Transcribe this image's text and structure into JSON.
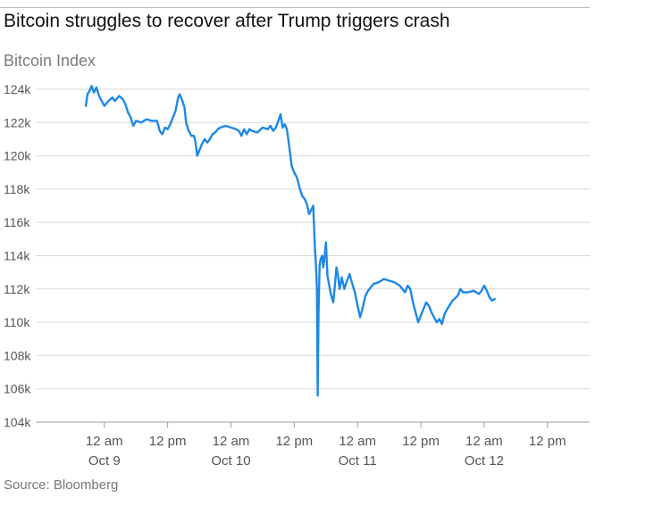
{
  "title": "Bitcoin struggles to recover after Trump triggers crash",
  "subtitle": "Bitcoin Index",
  "source": "Source: Bloomberg",
  "colors": {
    "line": "#1e88e5",
    "grid": "#d8d8d8",
    "text": "#555555"
  },
  "chart_data": {
    "type": "line",
    "title": "Bitcoin struggles to recover after Trump triggers crash",
    "ylabel": "Bitcoin Index",
    "xlabel": "",
    "ylim": [
      104000,
      124000
    ],
    "xlim": [
      -13,
      92
    ],
    "x_unit": "hours since 12 am Oct 9",
    "y_ticks": [
      104000,
      106000,
      108000,
      110000,
      112000,
      114000,
      116000,
      118000,
      120000,
      122000,
      124000
    ],
    "y_tick_labels": [
      "104k",
      "106k",
      "108k",
      "110k",
      "112k",
      "114k",
      "116k",
      "118k",
      "120k",
      "122k",
      "124k"
    ],
    "x_ticks": [
      {
        "x": 0,
        "line1": "12 am",
        "line2": "Oct 9"
      },
      {
        "x": 12,
        "line1": "12 pm",
        "line2": ""
      },
      {
        "x": 24,
        "line1": "12 am",
        "line2": "Oct 10"
      },
      {
        "x": 36,
        "line1": "12 pm",
        "line2": ""
      },
      {
        "x": 48,
        "line1": "12 am",
        "line2": "Oct 11"
      },
      {
        "x": 60,
        "line1": "12 pm",
        "line2": ""
      },
      {
        "x": 72,
        "line1": "12 am",
        "line2": "Oct 12"
      },
      {
        "x": 84,
        "line1": "12 pm",
        "line2": ""
      }
    ],
    "series": [
      {
        "name": "Bitcoin Index",
        "points": [
          [
            -3.5,
            123000
          ],
          [
            -3.2,
            123700
          ],
          [
            -2.8,
            123900
          ],
          [
            -2.4,
            124200
          ],
          [
            -2.0,
            123800
          ],
          [
            -1.5,
            124100
          ],
          [
            -1.0,
            123600
          ],
          [
            -0.5,
            123300
          ],
          [
            0.0,
            123000
          ],
          [
            0.8,
            123300
          ],
          [
            1.5,
            123500
          ],
          [
            2.0,
            123300
          ],
          [
            2.8,
            123600
          ],
          [
            3.5,
            123400
          ],
          [
            4.0,
            123100
          ],
          [
            4.5,
            122600
          ],
          [
            5.0,
            122300
          ],
          [
            5.5,
            121800
          ],
          [
            6.0,
            122100
          ],
          [
            7.0,
            122000
          ],
          [
            8.0,
            122200
          ],
          [
            9.0,
            122100
          ],
          [
            10.0,
            122100
          ],
          [
            10.5,
            121500
          ],
          [
            11.0,
            121300
          ],
          [
            11.5,
            121700
          ],
          [
            12.0,
            121600
          ],
          [
            12.5,
            121900
          ],
          [
            13.0,
            122300
          ],
          [
            13.5,
            122700
          ],
          [
            14.0,
            123500
          ],
          [
            14.3,
            123700
          ],
          [
            14.8,
            123300
          ],
          [
            15.2,
            122900
          ],
          [
            15.5,
            122000
          ],
          [
            16.0,
            121500
          ],
          [
            16.5,
            121200
          ],
          [
            17.0,
            121200
          ],
          [
            17.3,
            120800
          ],
          [
            17.6,
            120000
          ],
          [
            18.0,
            120300
          ],
          [
            18.5,
            120700
          ],
          [
            19.0,
            121000
          ],
          [
            19.5,
            120800
          ],
          [
            20.0,
            121000
          ],
          [
            20.5,
            121300
          ],
          [
            21.0,
            121400
          ],
          [
            21.5,
            121600
          ],
          [
            22.0,
            121700
          ],
          [
            23.0,
            121800
          ],
          [
            24.0,
            121700
          ],
          [
            25.0,
            121600
          ],
          [
            25.5,
            121500
          ],
          [
            26.0,
            121200
          ],
          [
            26.5,
            121600
          ],
          [
            27.0,
            121300
          ],
          [
            27.5,
            121600
          ],
          [
            28.0,
            121500
          ],
          [
            29.0,
            121400
          ],
          [
            30.0,
            121700
          ],
          [
            31.0,
            121600
          ],
          [
            31.5,
            121800
          ],
          [
            32.0,
            121500
          ],
          [
            32.5,
            121700
          ],
          [
            33.0,
            122100
          ],
          [
            33.4,
            122500
          ],
          [
            33.8,
            121700
          ],
          [
            34.2,
            121900
          ],
          [
            34.6,
            121600
          ],
          [
            35.0,
            120700
          ],
          [
            35.5,
            119400
          ],
          [
            36.0,
            119000
          ],
          [
            36.5,
            118700
          ],
          [
            37.0,
            118100
          ],
          [
            37.5,
            117600
          ],
          [
            38.0,
            117400
          ],
          [
            38.4,
            117100
          ],
          [
            38.8,
            116500
          ],
          [
            39.3,
            116800
          ],
          [
            39.6,
            117000
          ],
          [
            39.9,
            114500
          ],
          [
            40.1,
            113600
          ],
          [
            40.3,
            112000
          ],
          [
            40.45,
            105600
          ],
          [
            40.6,
            110500
          ],
          [
            40.8,
            113400
          ],
          [
            41.0,
            113800
          ],
          [
            41.3,
            114000
          ],
          [
            41.5,
            113300
          ],
          [
            41.8,
            114100
          ],
          [
            42.0,
            114800
          ],
          [
            42.3,
            112800
          ],
          [
            42.7,
            112100
          ],
          [
            43.0,
            111600
          ],
          [
            43.4,
            111200
          ],
          [
            43.7,
            112200
          ],
          [
            44.0,
            113300
          ],
          [
            44.3,
            112800
          ],
          [
            44.6,
            112000
          ],
          [
            45.0,
            112700
          ],
          [
            45.5,
            112000
          ],
          [
            46.0,
            112500
          ],
          [
            46.5,
            112900
          ],
          [
            47.0,
            112300
          ],
          [
            47.5,
            111800
          ],
          [
            48.0,
            111000
          ],
          [
            48.5,
            110300
          ],
          [
            49.0,
            110900
          ],
          [
            49.5,
            111600
          ],
          [
            50.0,
            111900
          ],
          [
            51.0,
            112300
          ],
          [
            52.0,
            112400
          ],
          [
            53.0,
            112600
          ],
          [
            54.0,
            112500
          ],
          [
            55.0,
            112400
          ],
          [
            56.0,
            112200
          ],
          [
            57.0,
            111800
          ],
          [
            57.5,
            112200
          ],
          [
            58.0,
            112000
          ],
          [
            58.5,
            111200
          ],
          [
            59.0,
            110600
          ],
          [
            59.5,
            110000
          ],
          [
            60.0,
            110400
          ],
          [
            60.5,
            110800
          ],
          [
            61.0,
            111200
          ],
          [
            61.5,
            111000
          ],
          [
            62.0,
            110600
          ],
          [
            62.5,
            110300
          ],
          [
            63.0,
            110000
          ],
          [
            63.5,
            110200
          ],
          [
            64.0,
            109900
          ],
          [
            64.5,
            110500
          ],
          [
            65.0,
            110800
          ],
          [
            66.0,
            111300
          ],
          [
            67.0,
            111600
          ],
          [
            67.5,
            112000
          ],
          [
            68.0,
            111800
          ],
          [
            69.0,
            111800
          ],
          [
            70.0,
            111900
          ],
          [
            71.0,
            111700
          ],
          [
            71.5,
            111900
          ],
          [
            72.0,
            112200
          ],
          [
            72.5,
            111900
          ],
          [
            73.0,
            111500
          ],
          [
            73.5,
            111300
          ],
          [
            74.0,
            111400
          ]
        ]
      }
    ]
  }
}
